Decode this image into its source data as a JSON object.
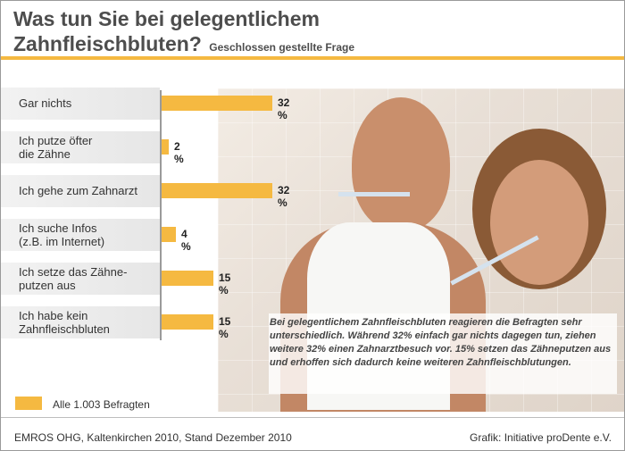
{
  "header": {
    "title_line1": "Was tun Sie bei gelegentlichem",
    "title_line2": "Zahnfleischbluten?",
    "subtitle": "Geschlossen gestellte Frage"
  },
  "chart_data": {
    "type": "bar",
    "orientation": "horizontal",
    "categories": [
      "Gar nichts",
      "Ich putze öfter die Zähne",
      "Ich gehe zum Zahnarzt",
      "Ich suche Infos (z.B. im Internet)",
      "Ich setze das Zähne-putzen aus",
      "Ich habe kein Zahnfleischbluten"
    ],
    "category_lines": [
      [
        "Gar nichts"
      ],
      [
        "Ich putze öfter",
        "die Zähne"
      ],
      [
        "Ich gehe zum Zahnarzt"
      ],
      [
        "Ich suche Infos",
        "(z.B. im Internet)"
      ],
      [
        "Ich setze das Zähne-",
        "putzen aus"
      ],
      [
        "Ich habe kein",
        "Zahnfleischbluten"
      ]
    ],
    "values": [
      32,
      2,
      32,
      4,
      15,
      15
    ],
    "value_labels": [
      "32 %",
      "2 %",
      "32 %",
      "4 %",
      "15 %",
      "15 %"
    ],
    "unit": "%",
    "xlim": [
      0,
      32
    ],
    "grid": false,
    "bar_color": "#f5b941",
    "legend": {
      "label": "Alle 1.003 Befragten",
      "placement": "bottom-left"
    }
  },
  "caption": "Bei gelegentlichem Zahnfleischbluten reagieren die Befragten sehr unterschiedlich. Während 32% einfach gar nichts dagegen tun, ziehen weitere 32% einen Zahnarztbesuch vor. 15% setzen das Zähneputzen aus und erhoffen sich dadurch keine weiteren Zahnfleischblutungen.",
  "footer": {
    "source": "EMROS OHG, Kaltenkirchen 2010, Stand Dezember 2010",
    "credit": "Grafik: Initiative proDente e.V."
  },
  "colors": {
    "accent": "#f5b941",
    "title": "#4d4d4d"
  }
}
